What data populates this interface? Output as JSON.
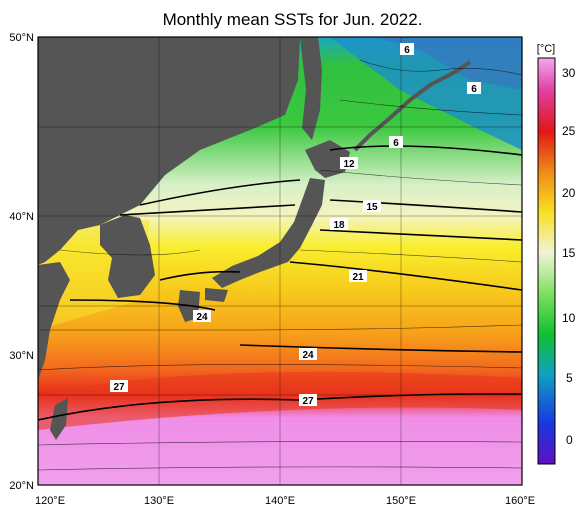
{
  "title": "Monthly mean SSTs for Jun. 2022.",
  "lon_ticks": [
    "120°E",
    "130°E",
    "140°E",
    "150°E",
    "160°E"
  ],
  "lat_ticks": [
    "50°N",
    "40°N",
    "30°N",
    "20°N"
  ],
  "colorbar": {
    "unit": "[°C]",
    "ticks": [
      "30",
      "25",
      "20",
      "15",
      "10",
      "5",
      "0"
    ],
    "min": -3,
    "max": 32
  },
  "contour_labels": [
    "6",
    "6",
    "6",
    "12",
    "15",
    "18",
    "21",
    "24",
    "24",
    "27",
    "27"
  ],
  "colors": {
    "land": "#555555",
    "warm_pink": "#f08ee8",
    "red": "#e8281c",
    "orange": "#f7a21a",
    "yellow": "#f9ee2c",
    "light": "#f4f4d2",
    "green": "#30c040",
    "blue": "#1678d0"
  }
}
